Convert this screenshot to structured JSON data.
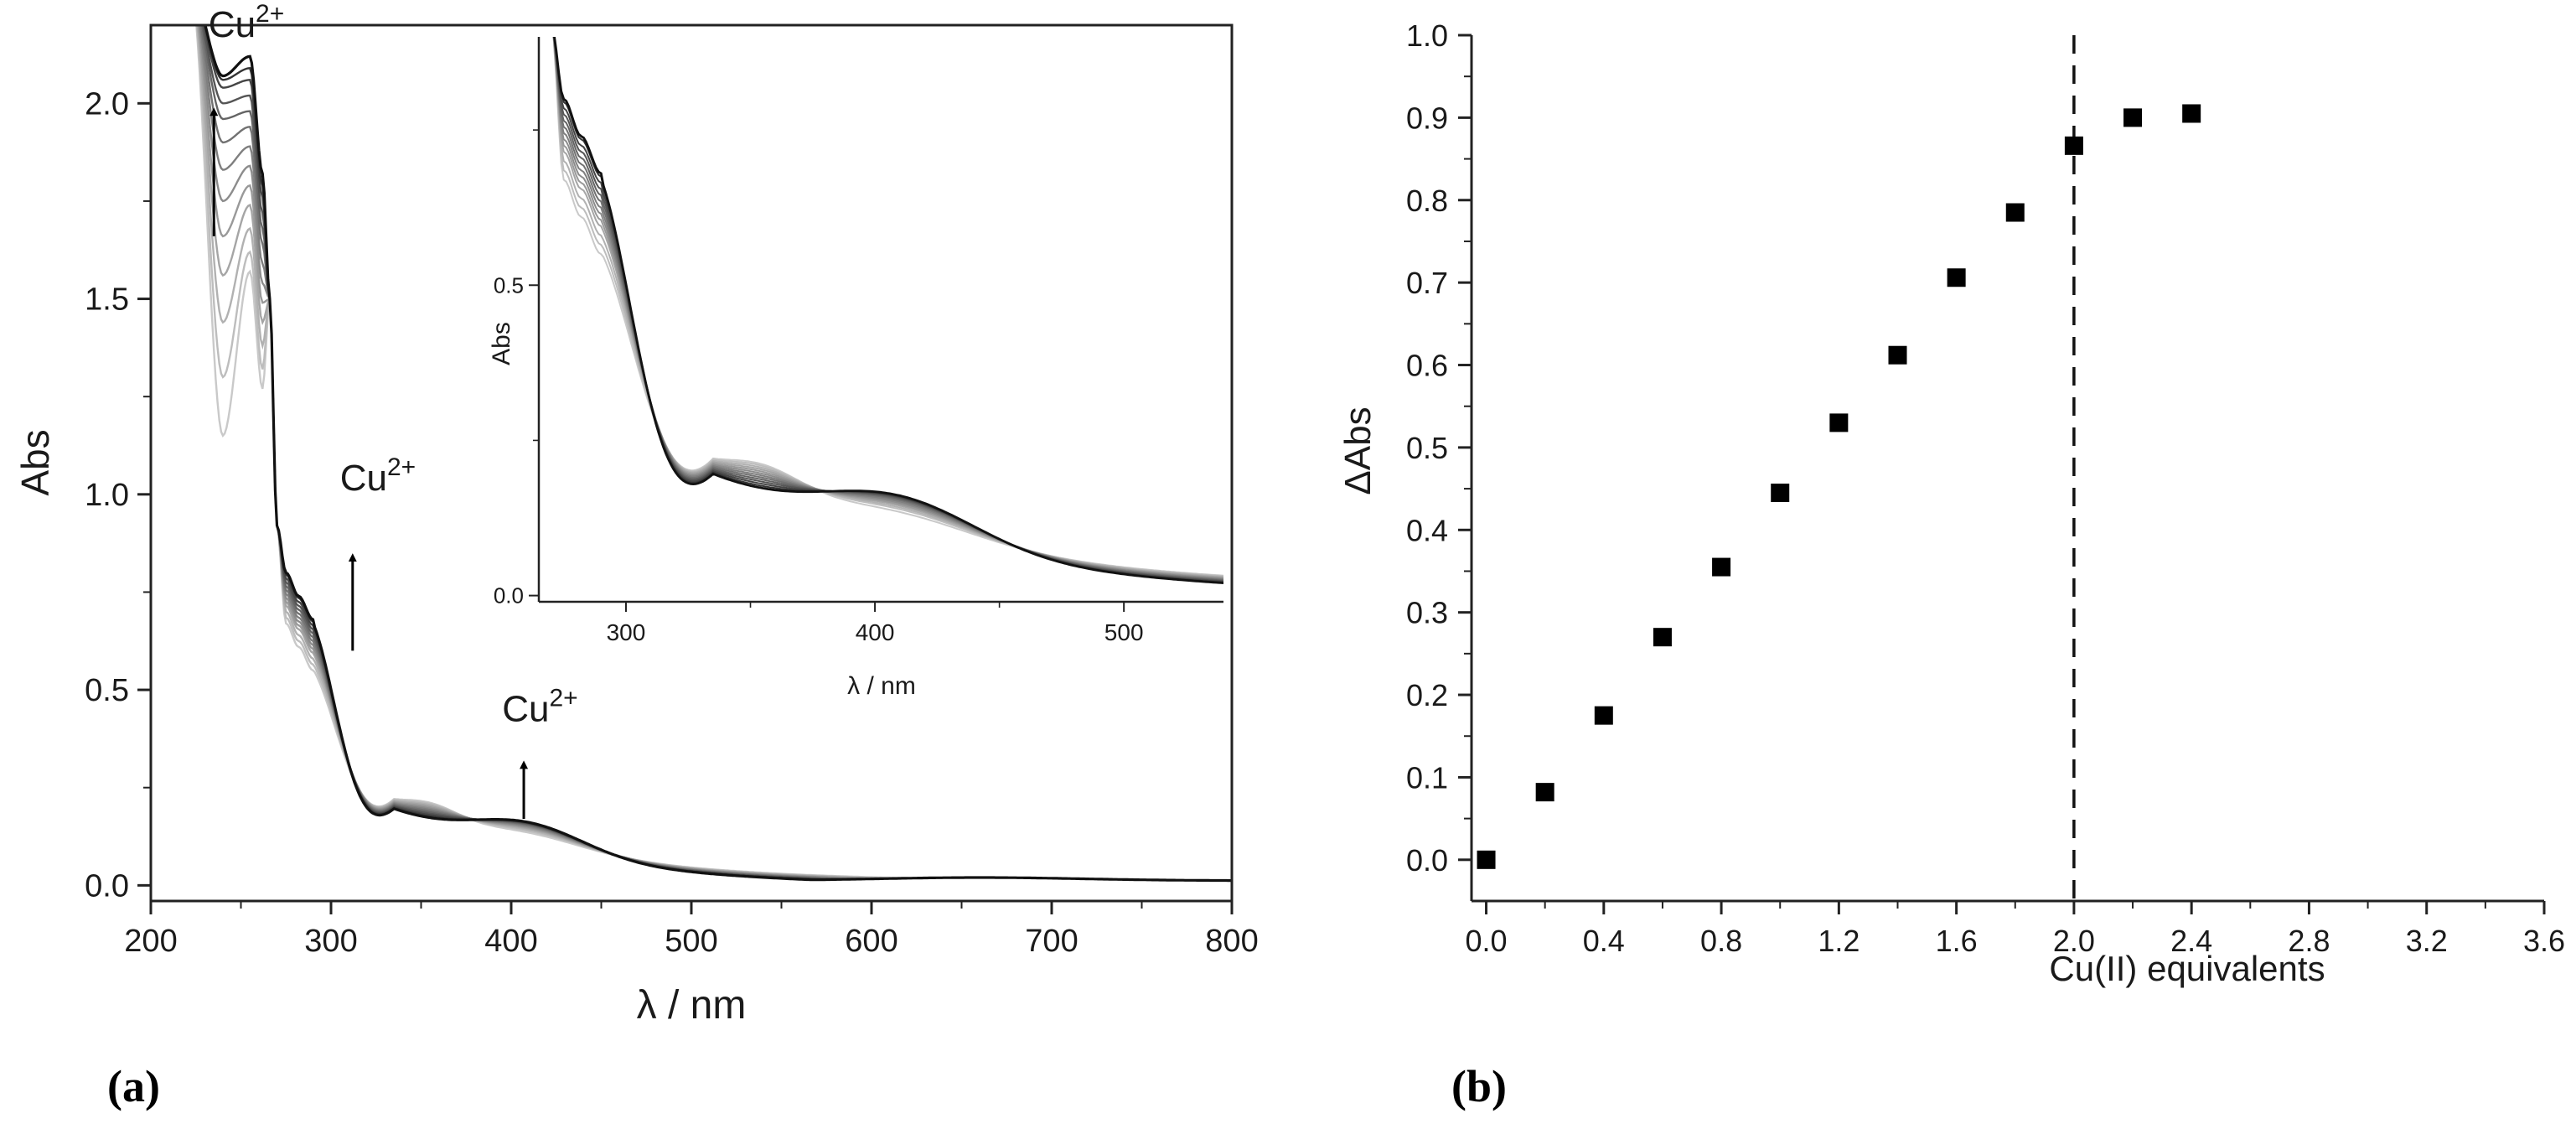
{
  "chart_data": [
    {
      "id": "a",
      "type": "line",
      "panel_label": "(a)",
      "title": "",
      "xlabel": "λ / nm",
      "ylabel": "Abs",
      "xlim": [
        200,
        800
      ],
      "ylim": [
        -0.04,
        2.2
      ],
      "x_ticks": [
        200,
        300,
        400,
        500,
        600,
        700,
        800
      ],
      "x_tick_labels": [
        "200",
        "300",
        "400",
        "500",
        "600",
        "700",
        "800"
      ],
      "y_ticks": [
        0.0,
        0.5,
        1.0,
        1.5,
        2.0
      ],
      "y_tick_labels": [
        "0.0",
        "0.5",
        "1.0",
        "1.5",
        "2.0"
      ],
      "grid": false,
      "annotations": [
        {
          "base": "Cu",
          "sup": "2+",
          "label_at": [
            232,
            2.17
          ],
          "arrow_from": [
            235,
            1.66
          ],
          "arrow_to": [
            235,
            2.0
          ]
        },
        {
          "base": "Cu",
          "sup": "2+",
          "label_at": [
            305,
            1.01
          ],
          "arrow_from": [
            312,
            0.6
          ],
          "arrow_to": [
            312,
            0.86
          ]
        },
        {
          "base": "Cu",
          "sup": "2+",
          "label_at": [
            395,
            0.42
          ],
          "arrow_from": [
            407,
            0.17
          ],
          "arrow_to": [
            407,
            0.33
          ]
        }
      ],
      "series_count": 13,
      "series_colors": [
        "#c9c9c9",
        "#bdbdbd",
        "#b1b1b1",
        "#a5a5a5",
        "#999999",
        "#8c8c8c",
        "#7f7f7f",
        "#727272",
        "#646464",
        "#555555",
        "#454545",
        "#333333",
        "#111111"
      ],
      "series_peak_abs": [
        1.57,
        1.62,
        1.68,
        1.74,
        1.79,
        1.84,
        1.89,
        1.94,
        1.98,
        2.02,
        2.06,
        2.09,
        2.12
      ],
      "series_min_abs_at_240nm": [
        1.15,
        1.3,
        1.44,
        1.56,
        1.66,
        1.75,
        1.83,
        1.9,
        1.96,
        2.0,
        2.04,
        2.06,
        2.07
      ],
      "series_shoulder_abs_at_290nm": [
        0.55,
        0.565,
        0.58,
        0.595,
        0.605,
        0.615,
        0.625,
        0.635,
        0.645,
        0.655,
        0.665,
        0.675,
        0.68
      ],
      "series_band_abs_at_410nm": [
        0.06,
        0.07,
        0.077,
        0.084,
        0.09,
        0.096,
        0.102,
        0.108,
        0.113,
        0.118,
        0.122,
        0.126,
        0.13
      ],
      "inset": {
        "xlabel": "λ / nm",
        "ylabel": "Abs",
        "xlim": [
          265,
          540
        ],
        "ylim": [
          -0.01,
          0.9
        ],
        "x_ticks": [
          300,
          400,
          500
        ],
        "x_tick_labels": [
          "300",
          "400",
          "500"
        ],
        "y_ticks": [
          0.0,
          0.5
        ],
        "y_tick_labels": [
          "0.0",
          "0.5"
        ]
      }
    },
    {
      "id": "b",
      "type": "scatter",
      "panel_label": "(b)",
      "title": "",
      "xlabel": "Cu(II) equivalents",
      "ylabel": "ΔAbs",
      "xlim": [
        -0.05,
        3.6
      ],
      "ylim": [
        -0.05,
        1.0
      ],
      "x_ticks": [
        0.0,
        0.4,
        0.8,
        1.2,
        1.6,
        2.0,
        2.4,
        2.8,
        3.2,
        3.6
      ],
      "x_tick_labels": [
        "0.0",
        "0.4",
        "0.8",
        "1.2",
        "1.6",
        "2.0",
        "2.4",
        "2.8",
        "3.2",
        "3.6"
      ],
      "y_ticks": [
        0.0,
        0.1,
        0.2,
        0.3,
        0.4,
        0.5,
        0.6,
        0.7,
        0.8,
        0.9,
        1.0
      ],
      "y_tick_labels": [
        "0.0",
        "0.1",
        "0.2",
        "0.3",
        "0.4",
        "0.5",
        "0.6",
        "0.7",
        "0.8",
        "0.9",
        "1.0"
      ],
      "grid": false,
      "x": [
        0.0,
        0.2,
        0.4,
        0.6,
        0.8,
        1.0,
        1.2,
        1.4,
        1.6,
        1.8,
        2.0,
        2.2,
        2.4
      ],
      "y": [
        0.0,
        0.082,
        0.175,
        0.27,
        0.355,
        0.445,
        0.53,
        0.612,
        0.706,
        0.785,
        0.866,
        0.9,
        0.905
      ],
      "marker": "square",
      "vline_x": 2.0
    }
  ]
}
